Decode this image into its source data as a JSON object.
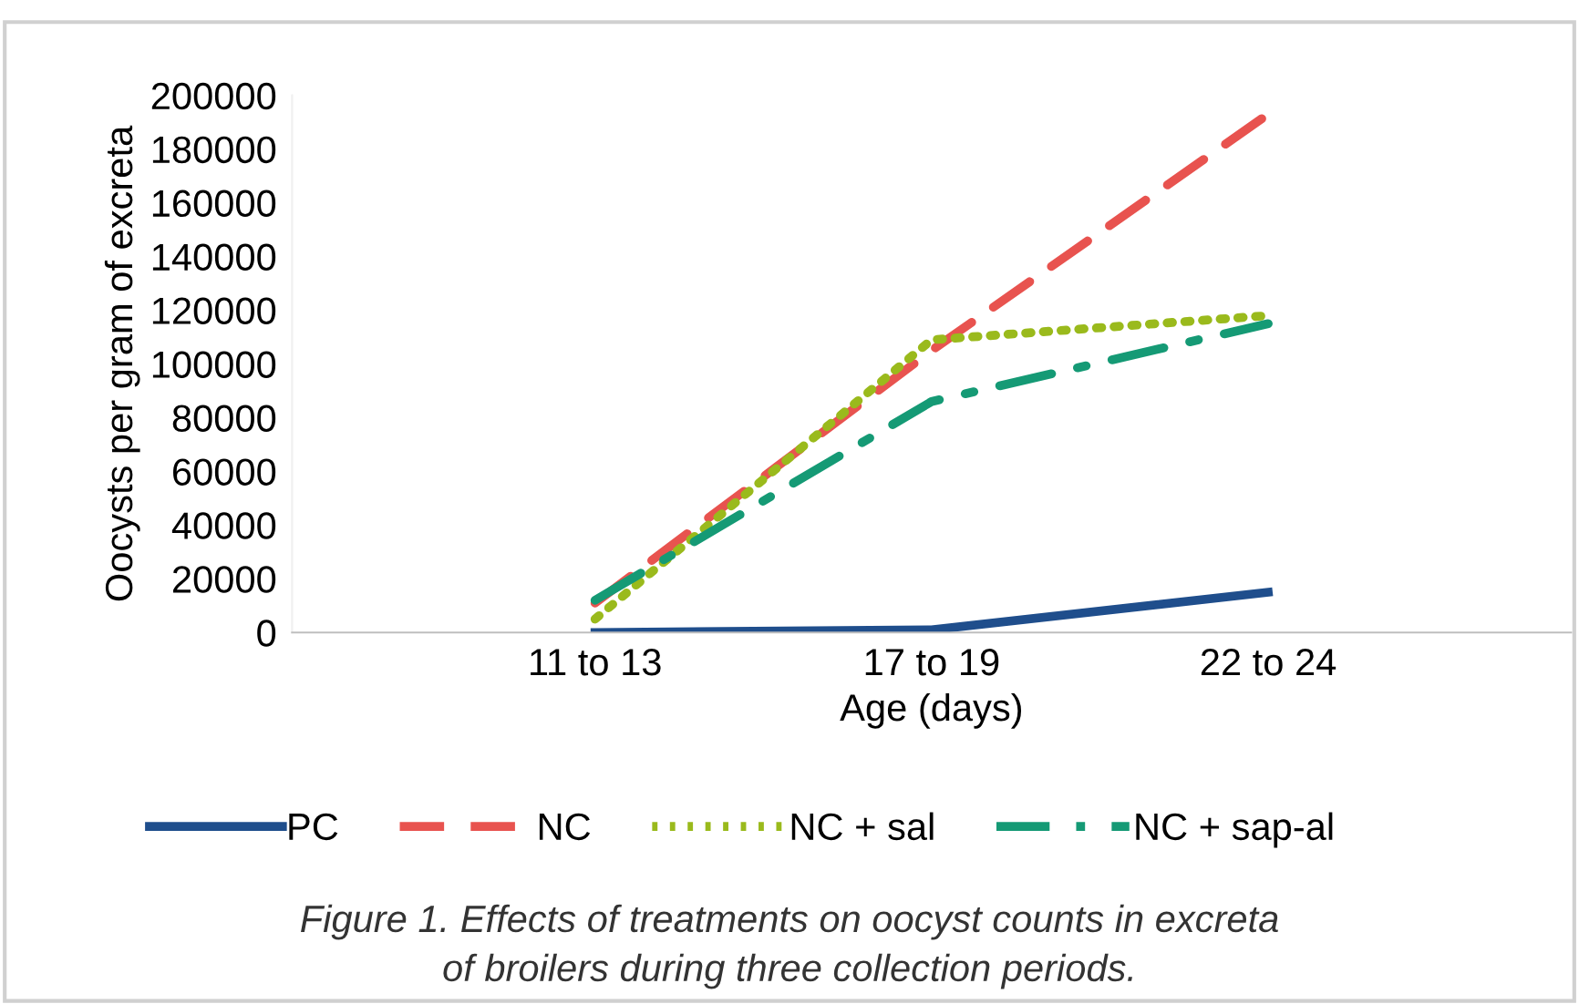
{
  "chart_data": {
    "type": "line",
    "xlabel": "Age (days)",
    "ylabel": "Oocysts per gram of excreta",
    "categories": [
      "11 to 13",
      "17 to 19",
      "22 to 24"
    ],
    "ylim": [
      0,
      200000
    ],
    "yticks": [
      0,
      20000,
      40000,
      60000,
      80000,
      100000,
      120000,
      140000,
      160000,
      180000,
      200000
    ],
    "grid": false,
    "legend": "bottom",
    "marker": "none",
    "series": [
      {
        "name": "PC",
        "color": "#1f4e8c",
        "line_style": "solid",
        "values": [
          0,
          1000,
          15000
        ]
      },
      {
        "name": "NC",
        "color": "#e8534f",
        "line_style": "dashed",
        "values": [
          11000,
          105000,
          193000
        ]
      },
      {
        "name": "NC + sal",
        "color": "#9aba1c",
        "line_style": "dotted",
        "values": [
          5000,
          109000,
          118000
        ]
      },
      {
        "name": "NC + sap-al",
        "color": "#159a75",
        "line_style": "dashdot",
        "values": [
          12000,
          86000,
          115000
        ]
      }
    ],
    "annotations": [
      "Figure 1. Effects of treatments on oocyst counts in excreta\nof broilers during three collection periods."
    ]
  }
}
